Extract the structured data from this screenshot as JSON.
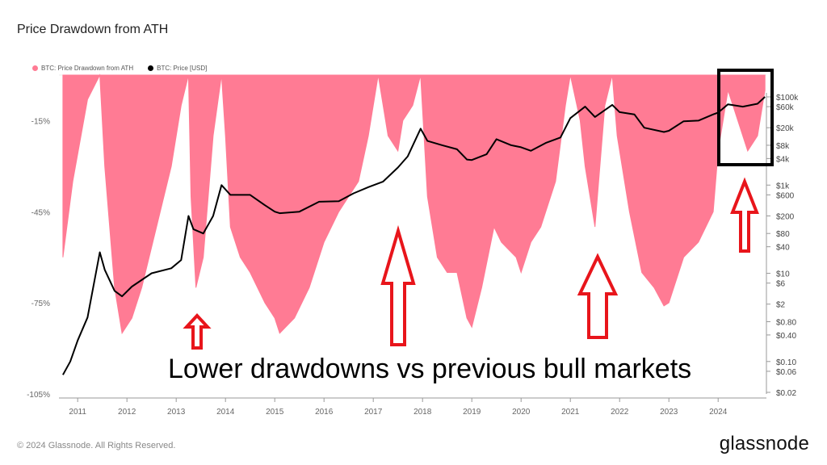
{
  "title": "Price Drawdown from ATH",
  "legend": [
    {
      "label": "BTC: Price Drawdown from ATH",
      "color": "#ff7b94"
    },
    {
      "label": "BTC: Price [USD]",
      "color": "#000000"
    }
  ],
  "footer": "© 2024 Glassnode. All Rights Reserved.",
  "brand": "glassnode",
  "annotation_text": "Lower drawdowns vs previous bull markets",
  "colors": {
    "drawdown": "#ff7b94",
    "price": "#000000",
    "arrow": "#e8151b",
    "box": "#000000"
  },
  "chart_data": {
    "type": "area",
    "x_range": [
      "2010-07",
      "2024-12"
    ],
    "x_ticks": [
      "2011",
      "2012",
      "2013",
      "2014",
      "2015",
      "2016",
      "2017",
      "2018",
      "2019",
      "2020",
      "2021",
      "2022",
      "2023",
      "2024"
    ],
    "left_axis": {
      "ticks": [
        "-15%",
        "-45%",
        "-75%",
        "-105%"
      ],
      "range": [
        -105,
        0
      ]
    },
    "right_axis": {
      "scale": "log",
      "ticks": [
        "$100k",
        "$60k",
        "$20k",
        "$8k",
        "$4k",
        "$1k",
        "$600",
        "$200",
        "$80",
        "$40",
        "$10",
        "$6",
        "$2",
        "$0.80",
        "$0.40",
        "$0.10",
        "$0.06",
        "$0.02"
      ]
    },
    "series": [
      {
        "name": "BTC: Price Drawdown from ATH",
        "type": "area",
        "x": [
          2010.7,
          2010.9,
          2011.2,
          2011.45,
          2011.55,
          2011.75,
          2011.9,
          2012.1,
          2012.3,
          2012.6,
          2012.9,
          2013.1,
          2013.25,
          2013.3,
          2013.4,
          2013.55,
          2013.75,
          2013.92,
          2014.0,
          2014.1,
          2014.3,
          2014.5,
          2014.8,
          2015.0,
          2015.1,
          2015.4,
          2015.7,
          2016.0,
          2016.3,
          2016.5,
          2016.7,
          2016.9,
          2017.0,
          2017.1,
          2017.3,
          2017.5,
          2017.6,
          2017.8,
          2017.96,
          2018.1,
          2018.3,
          2018.5,
          2018.7,
          2018.9,
          2019.0,
          2019.2,
          2019.45,
          2019.6,
          2019.9,
          2020.0,
          2020.2,
          2020.4,
          2020.7,
          2020.9,
          2021.0,
          2021.2,
          2021.3,
          2021.5,
          2021.7,
          2021.85,
          2021.95,
          2022.2,
          2022.45,
          2022.7,
          2022.9,
          2023.0,
          2023.3,
          2023.6,
          2023.9,
          2024.0,
          2024.2,
          2024.4,
          2024.6,
          2024.8,
          2024.95
        ],
        "values": [
          -60,
          -35,
          -8,
          0,
          -30,
          -70,
          -85,
          -80,
          -70,
          -50,
          -30,
          -10,
          0,
          -40,
          -70,
          -60,
          -20,
          0,
          -20,
          -50,
          -60,
          -65,
          -75,
          -80,
          -85,
          -80,
          -70,
          -55,
          -45,
          -40,
          -35,
          -20,
          -10,
          0,
          -20,
          -25,
          -15,
          -10,
          0,
          -40,
          -60,
          -65,
          -65,
          -80,
          -83,
          -70,
          -50,
          -55,
          -60,
          -65,
          -55,
          -50,
          -35,
          -10,
          0,
          -15,
          -30,
          -50,
          -10,
          0,
          -20,
          -45,
          -65,
          -70,
          -76,
          -75,
          -60,
          -55,
          -45,
          -25,
          -5,
          -15,
          -25,
          -20,
          -5
        ]
      },
      {
        "name": "BTC: Price [USD]",
        "type": "line",
        "x": [
          2010.7,
          2010.85,
          2011.0,
          2011.2,
          2011.45,
          2011.55,
          2011.75,
          2011.9,
          2012.1,
          2012.5,
          2012.9,
          2013.1,
          2013.25,
          2013.35,
          2013.55,
          2013.75,
          2013.92,
          2014.1,
          2014.5,
          2014.8,
          2015.0,
          2015.1,
          2015.5,
          2015.9,
          2016.3,
          2016.6,
          2016.9,
          2017.2,
          2017.5,
          2017.7,
          2017.96,
          2018.1,
          2018.4,
          2018.7,
          2018.9,
          2019.0,
          2019.3,
          2019.5,
          2019.8,
          2020.0,
          2020.2,
          2020.5,
          2020.8,
          2021.0,
          2021.3,
          2021.5,
          2021.85,
          2022.0,
          2022.3,
          2022.5,
          2022.9,
          2023.0,
          2023.3,
          2023.6,
          2023.9,
          2024.0,
          2024.2,
          2024.5,
          2024.8,
          2024.95
        ],
        "values": [
          0.05,
          0.1,
          0.3,
          1,
          30,
          12,
          4,
          3,
          5,
          10,
          13,
          20,
          200,
          100,
          80,
          200,
          1000,
          600,
          600,
          350,
          250,
          230,
          250,
          420,
          430,
          650,
          900,
          1200,
          2500,
          4500,
          19000,
          10000,
          8000,
          6500,
          3800,
          3700,
          5000,
          11000,
          8000,
          7200,
          6000,
          9000,
          12000,
          33000,
          60000,
          35000,
          66000,
          45000,
          40000,
          20000,
          16000,
          17000,
          28000,
          29000,
          40000,
          44000,
          68000,
          60000,
          70000,
          100000
        ]
      }
    ]
  }
}
